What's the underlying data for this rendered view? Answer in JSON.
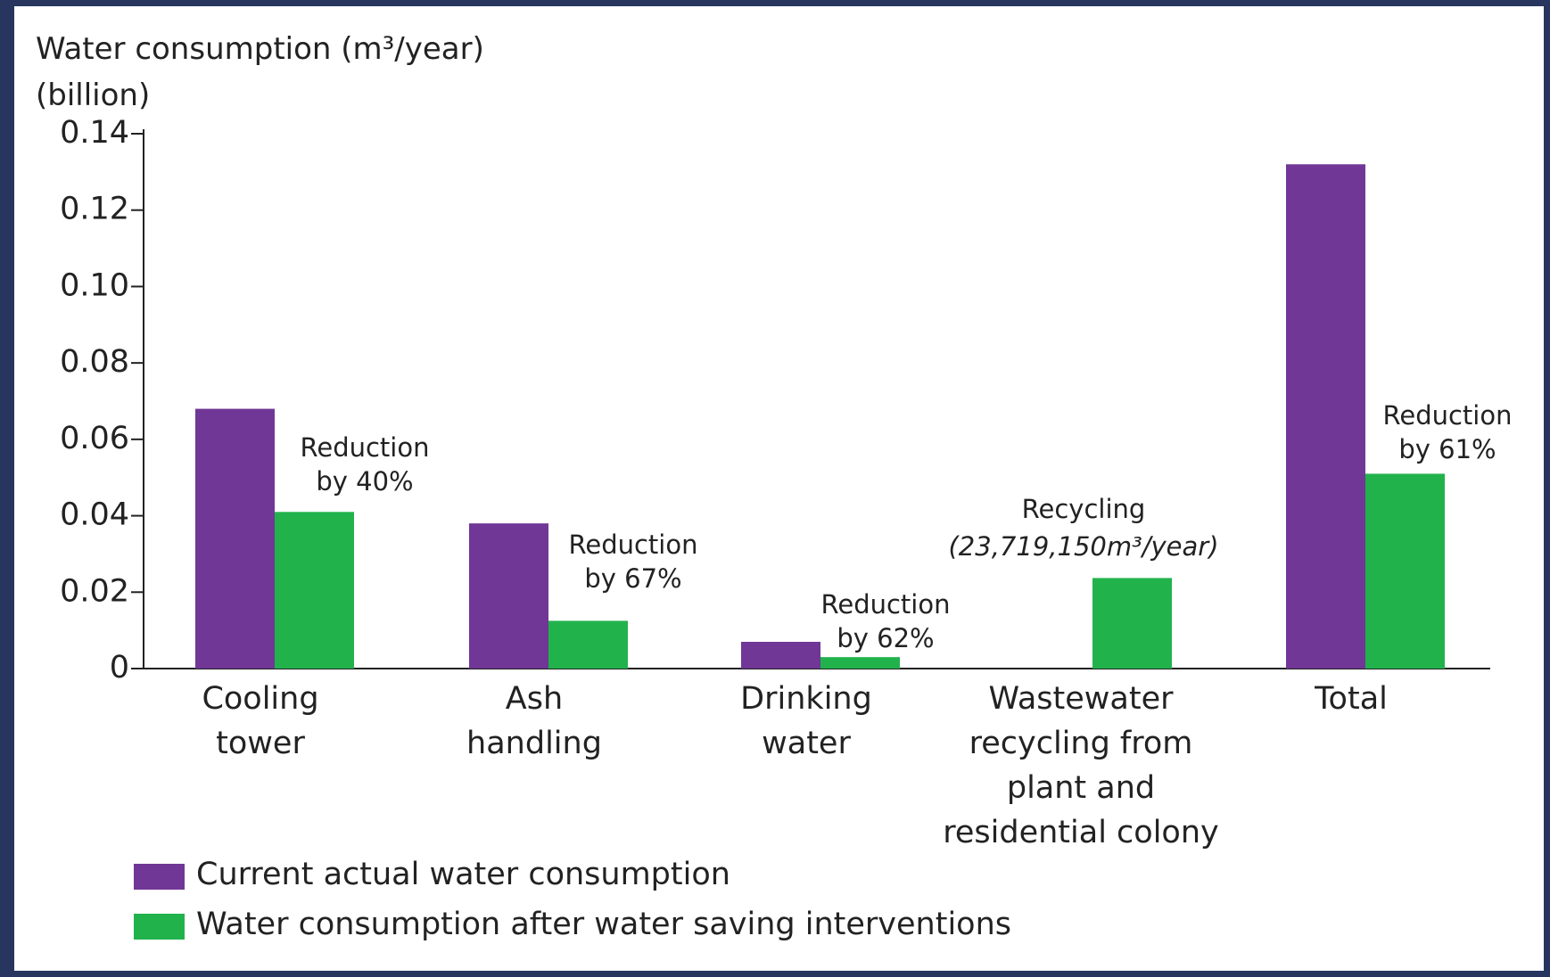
{
  "chart_data": {
    "type": "bar",
    "title": "Water consumption (m³/year)",
    "subtitle": "(billion)",
    "categories": [
      "Cooling\ntower",
      "Ash\nhandling",
      "Drinking\nwater",
      "Wastewater\nrecycling from\nplant and\nresidential colony",
      "Total"
    ],
    "series": [
      {
        "name": "Current actual water consumption",
        "color": "#703796",
        "values": [
          0.068,
          0.038,
          0.007,
          null,
          0.132
        ]
      },
      {
        "name": "Water consumption after water saving interventions",
        "color": "#22b24c",
        "values": [
          0.041,
          0.0125,
          0.003,
          0.0237,
          0.051
        ]
      }
    ],
    "ylim": [
      0,
      0.14
    ],
    "yticks": [
      0,
      0.02,
      0.04,
      0.06,
      0.08,
      {
        "value": 0.1,
        "label": "0.10"
      },
      0.12,
      0.14
    ],
    "grid": false,
    "legend": "bottom-left",
    "annotations": [
      {
        "text": "Reduction\nby 40%"
      },
      {
        "text": "Reduction\nby 67%"
      },
      {
        "text": "Reduction\nby 62%"
      },
      {
        "text": "Recycling"
      },
      {
        "text": "(23,719,150m³/year)",
        "style": "italic"
      },
      {
        "text": "Reduction\nby 61%"
      }
    ]
  }
}
